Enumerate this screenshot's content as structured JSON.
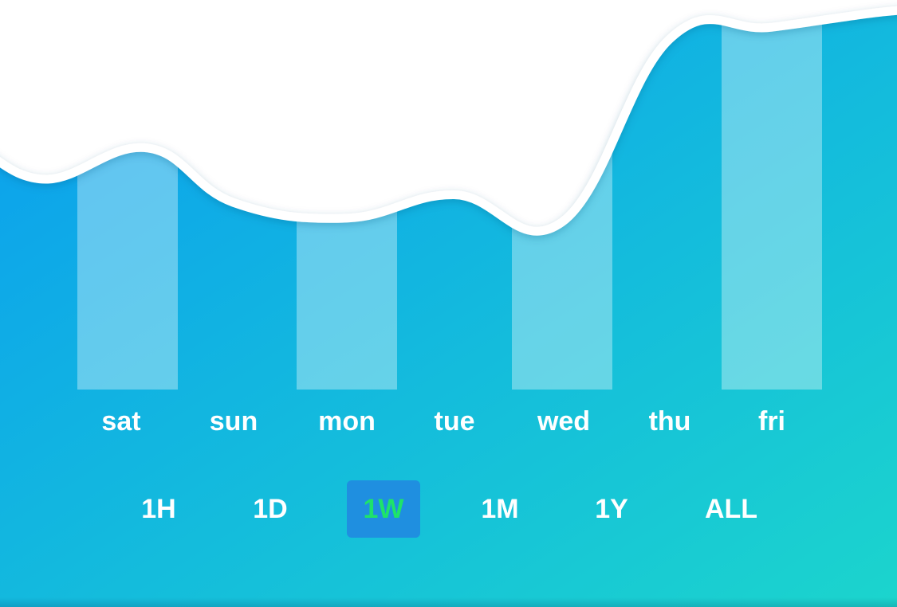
{
  "colors": {
    "gradient_start": "#0a9cf0",
    "gradient_end": "#1cd6cc",
    "line": "#ffffff",
    "bar_fill": "#ffffff",
    "selected_text": "#1ee36a",
    "selected_bg": "#1f8fe0",
    "text": "#ffffff"
  },
  "chart_data": {
    "type": "area",
    "title": "",
    "xlabel": "",
    "ylabel": "",
    "ylim": [
      0,
      100
    ],
    "categories": [
      "sat",
      "sun",
      "mon",
      "tue",
      "wed",
      "thu",
      "fri"
    ],
    "series": [
      {
        "name": "value",
        "values": [
          62,
          48,
          44,
          50,
          43,
          90,
          93
        ]
      }
    ],
    "highlighted": [
      "sat",
      "mon",
      "wed",
      "fri"
    ]
  },
  "range_selector": {
    "options": [
      "1H",
      "1D",
      "1W",
      "1M",
      "1Y",
      "ALL"
    ],
    "selected": "1W"
  }
}
